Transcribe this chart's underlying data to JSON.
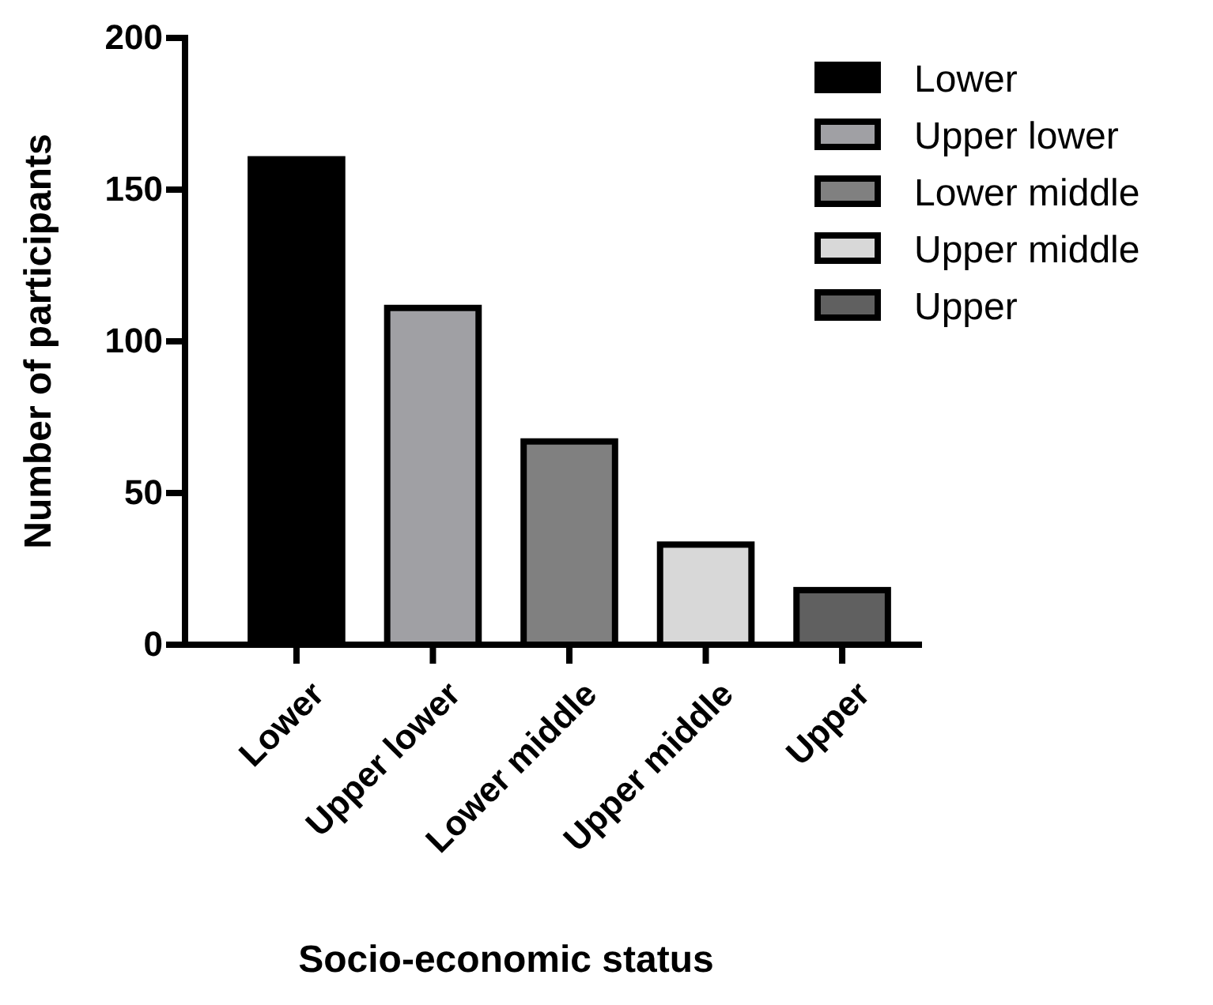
{
  "chart_data": {
    "type": "bar",
    "xlabel": "Socio-economic status",
    "ylabel": "Number of participants",
    "categories": [
      "Lower",
      "Upper lower",
      "Lower middle",
      "Upper middle",
      "Upper"
    ],
    "series": [
      {
        "name": "Lower",
        "color": "#000000",
        "values": [
          160,
          null,
          null,
          null,
          null
        ]
      },
      {
        "name": "Upper lower",
        "color": "#a0a0a4",
        "values": [
          null,
          111,
          null,
          null,
          null
        ]
      },
      {
        "name": "Lower middle",
        "color": "#808080",
        "values": [
          null,
          null,
          67,
          null,
          null
        ]
      },
      {
        "name": "Upper middle",
        "color": "#d8d8d8",
        "values": [
          null,
          null,
          null,
          33,
          null
        ]
      },
      {
        "name": "Upper",
        "color": "#606060",
        "values": [
          null,
          null,
          null,
          null,
          18
        ]
      }
    ],
    "ylim": [
      0,
      200
    ],
    "yticks": [
      0,
      50,
      100,
      150,
      200
    ],
    "grid": false,
    "legend": "top right"
  }
}
